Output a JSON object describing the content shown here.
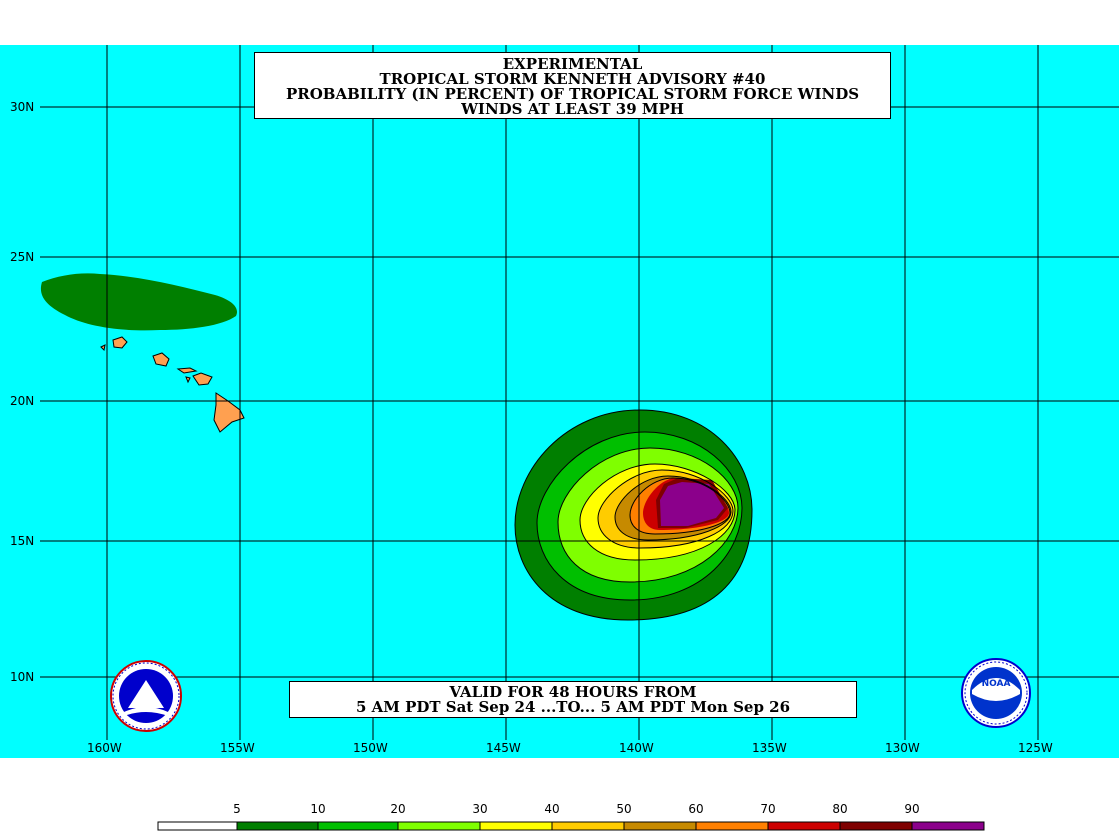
{
  "title": {
    "line1": "EXPERIMENTAL",
    "line2": "TROPICAL STORM KENNETH ADVISORY #40",
    "line3": "PROBABILITY (IN PERCENT) OF TROPICAL STORM FORCE WINDS",
    "line4": "WINDS AT LEAST 39 MPH"
  },
  "valid": {
    "line1": "VALID FOR 48 HOURS FROM",
    "line2": "5 AM PDT Sat Sep 24 ...TO... 5 AM PDT Mon Sep 26"
  },
  "lat_labels": [
    "30N",
    "25N",
    "20N",
    "15N",
    "10N"
  ],
  "lon_labels": [
    "160W",
    "155W",
    "150W",
    "145W",
    "140W",
    "135W",
    "130W",
    "125W"
  ],
  "legend": {
    "labels": [
      "5",
      "10",
      "20",
      "30",
      "40",
      "50",
      "60",
      "70",
      "80",
      "90"
    ],
    "colors": [
      "#ffffff",
      "#007f00",
      "#00bf00",
      "#7fff00",
      "#ffff00",
      "#ffcc00",
      "#c68a00",
      "#ff8000",
      "#cc0000",
      "#7f0000",
      "#8b008b"
    ]
  },
  "colors": {
    "ocean": "#00ffff",
    "land": "#ffa050",
    "prob_10": "#007f00",
    "prob_20": "#00bf00",
    "prob_30": "#7fff00",
    "prob_40": "#ffff00",
    "prob_50": "#ffcc00",
    "prob_60": "#c68a00",
    "prob_70": "#ff8000",
    "prob_80": "#cc0000",
    "prob_90": "#7f0000",
    "prob_max": "#8b008b"
  },
  "logos": {
    "left_icon": "nws-logo-icon",
    "right_icon": "noaa-logo-icon",
    "right_text": "NOAA"
  }
}
